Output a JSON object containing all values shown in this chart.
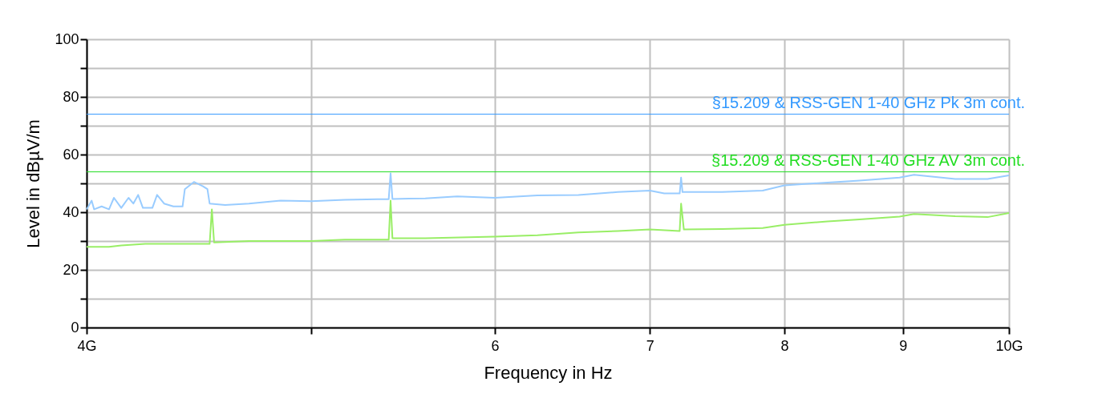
{
  "chart_data": {
    "type": "line",
    "xlabel": "Frequency in Hz",
    "ylabel": "Level in dBµV/m",
    "log": "x",
    "grid": true,
    "line_style": "solid",
    "xlim": [
      4,
      10
    ],
    "xticks": [
      {
        "value": 4,
        "label": "4G"
      },
      {
        "value": 5,
        "label": null
      },
      6,
      7,
      8,
      9,
      {
        "value": 10,
        "label": "10G"
      }
    ],
    "ylim": [
      0,
      100
    ],
    "yticks": [
      0,
      {
        "value": 10,
        "label": null
      },
      20,
      {
        "value": 30,
        "label": null
      },
      40,
      {
        "value": 50,
        "label": null
      },
      60,
      {
        "value": 70,
        "label": null
      },
      80,
      {
        "value": 90,
        "label": null
      },
      100
    ],
    "series": [
      {
        "color": "#99ccff",
        "x": [
          4,
          4.02,
          4.03,
          4.06,
          4.09,
          4.11,
          4.14,
          4.17,
          4.19,
          4.21,
          4.23,
          4.27,
          4.29,
          4.32,
          4.36,
          4.4,
          4.41,
          4.45,
          4.49,
          4.51,
          4.52,
          4.59,
          4.7,
          4.85,
          5,
          5.17,
          5.34,
          5.4,
          5.41,
          5.42,
          5.6,
          5.78,
          6,
          6.26,
          6.52,
          6.78,
          7,
          7.1,
          7.21,
          7.22,
          7.23,
          7.52,
          7.83,
          8,
          8.35,
          8.62,
          8.97,
          9.1,
          9.48,
          9.79,
          10
        ],
        "values": [
          41,
          44,
          41,
          42,
          41,
          45,
          41.5,
          45,
          43,
          46,
          41.5,
          41.5,
          46,
          43,
          42,
          42,
          48,
          50.5,
          49,
          48,
          43,
          42.5,
          43,
          44,
          43.8,
          44.3,
          44.5,
          44.5,
          53.5,
          44.6,
          44.8,
          45.5,
          45,
          45.8,
          46,
          47,
          47.5,
          46.5,
          46.5,
          52,
          47,
          47,
          47.5,
          49.3,
          50.3,
          51,
          52,
          53,
          51.5,
          51.5,
          52.8
        ]
      },
      {
        "color": "#99ee66",
        "x": [
          4,
          4.09,
          4.14,
          4.24,
          4.36,
          4.52,
          4.53,
          4.54,
          4.7,
          5,
          5.17,
          5.4,
          5.41,
          5.42,
          5.6,
          6,
          6.26,
          6.52,
          6.78,
          7,
          7.21,
          7.22,
          7.24,
          7.52,
          7.83,
          8,
          8.35,
          8.62,
          8.97,
          9.1,
          9.48,
          9.79,
          10
        ],
        "values": [
          28,
          28,
          28.5,
          29,
          29,
          29,
          41,
          29.5,
          30,
          30,
          30.5,
          30.5,
          44,
          31,
          31,
          31.5,
          32,
          33,
          33.5,
          34,
          33.5,
          43,
          34,
          34.2,
          34.5,
          35.6,
          36.8,
          37.5,
          38.5,
          39.4,
          38.6,
          38.3,
          39.7
        ]
      }
    ],
    "ref_lines": [
      {
        "axis": "y",
        "value": 74,
        "label": "§15.209 & RSS-GEN 1-40 GHz Pk 3m cont.",
        "color": "#3399ff"
      },
      {
        "axis": "y",
        "value": 54,
        "label": "§15.209 & RSS-GEN 1-40 GHz AV 3m cont.",
        "color": "#22dd22"
      }
    ]
  }
}
